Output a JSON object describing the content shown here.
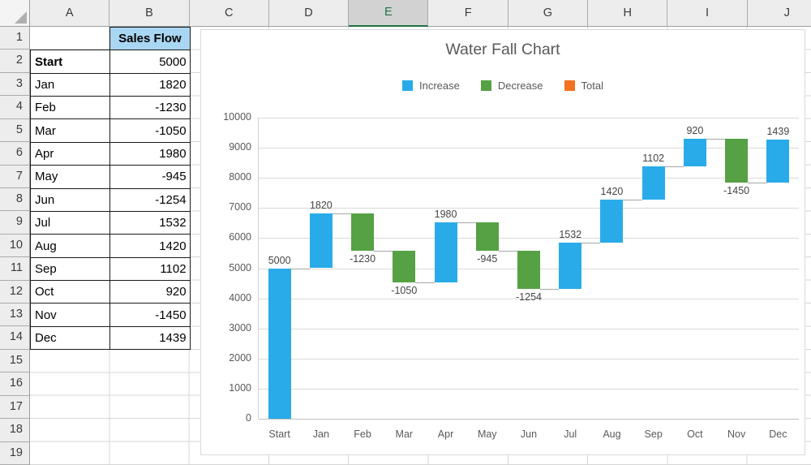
{
  "sheet": {
    "columns": [
      "A",
      "B",
      "C",
      "D",
      "E",
      "F",
      "G",
      "H",
      "I",
      "J"
    ],
    "selected_column": "E",
    "row_numbers": [
      "1",
      "2",
      "3",
      "4",
      "5",
      "6",
      "7",
      "8",
      "9",
      "10",
      "11",
      "12",
      "13",
      "14",
      "15",
      "16",
      "17",
      "18",
      "19"
    ],
    "table": {
      "header": "Sales Flow",
      "entries": [
        {
          "label": "Start",
          "value": "5000"
        },
        {
          "label": "Jan",
          "value": "1820"
        },
        {
          "label": "Feb",
          "value": "-1230"
        },
        {
          "label": "Mar",
          "value": "-1050"
        },
        {
          "label": "Apr",
          "value": "1980"
        },
        {
          "label": "May",
          "value": "-945"
        },
        {
          "label": "Jun",
          "value": "-1254"
        },
        {
          "label": "Jul",
          "value": "1532"
        },
        {
          "label": "Aug",
          "value": "1420"
        },
        {
          "label": "Sep",
          "value": "1102"
        },
        {
          "label": "Oct",
          "value": "920"
        },
        {
          "label": "Nov",
          "value": "-1450"
        },
        {
          "label": "Dec",
          "value": "1439"
        }
      ]
    }
  },
  "chart_data": {
    "type": "bar",
    "subtype": "waterfall",
    "title": "Water Fall Chart",
    "legend": [
      {
        "label": "Increase",
        "color": "#29ABE9"
      },
      {
        "label": "Decrease",
        "color": "#55A144"
      },
      {
        "label": "Total",
        "color": "#F4711F"
      }
    ],
    "legend_position": "top",
    "categories": [
      "Start",
      "Jan",
      "Feb",
      "Mar",
      "Apr",
      "May",
      "Jun",
      "Jul",
      "Aug",
      "Sep",
      "Oct",
      "Nov",
      "Dec"
    ],
    "values": [
      5000,
      1820,
      -1230,
      -1050,
      1980,
      -945,
      -1254,
      1532,
      1420,
      1102,
      920,
      -1450,
      1439
    ],
    "cumulative": [
      5000,
      6820,
      5590,
      4540,
      6520,
      5575,
      4321,
      5853,
      7273,
      8375,
      9295,
      7845,
      9284
    ],
    "xlabel": "",
    "ylabel": "",
    "ylim": [
      0,
      10000
    ],
    "ytick_step": 1000,
    "grid": true,
    "colors": {
      "increase": "#29ABE9",
      "decrease": "#55A144",
      "total": "#F4711F"
    }
  }
}
